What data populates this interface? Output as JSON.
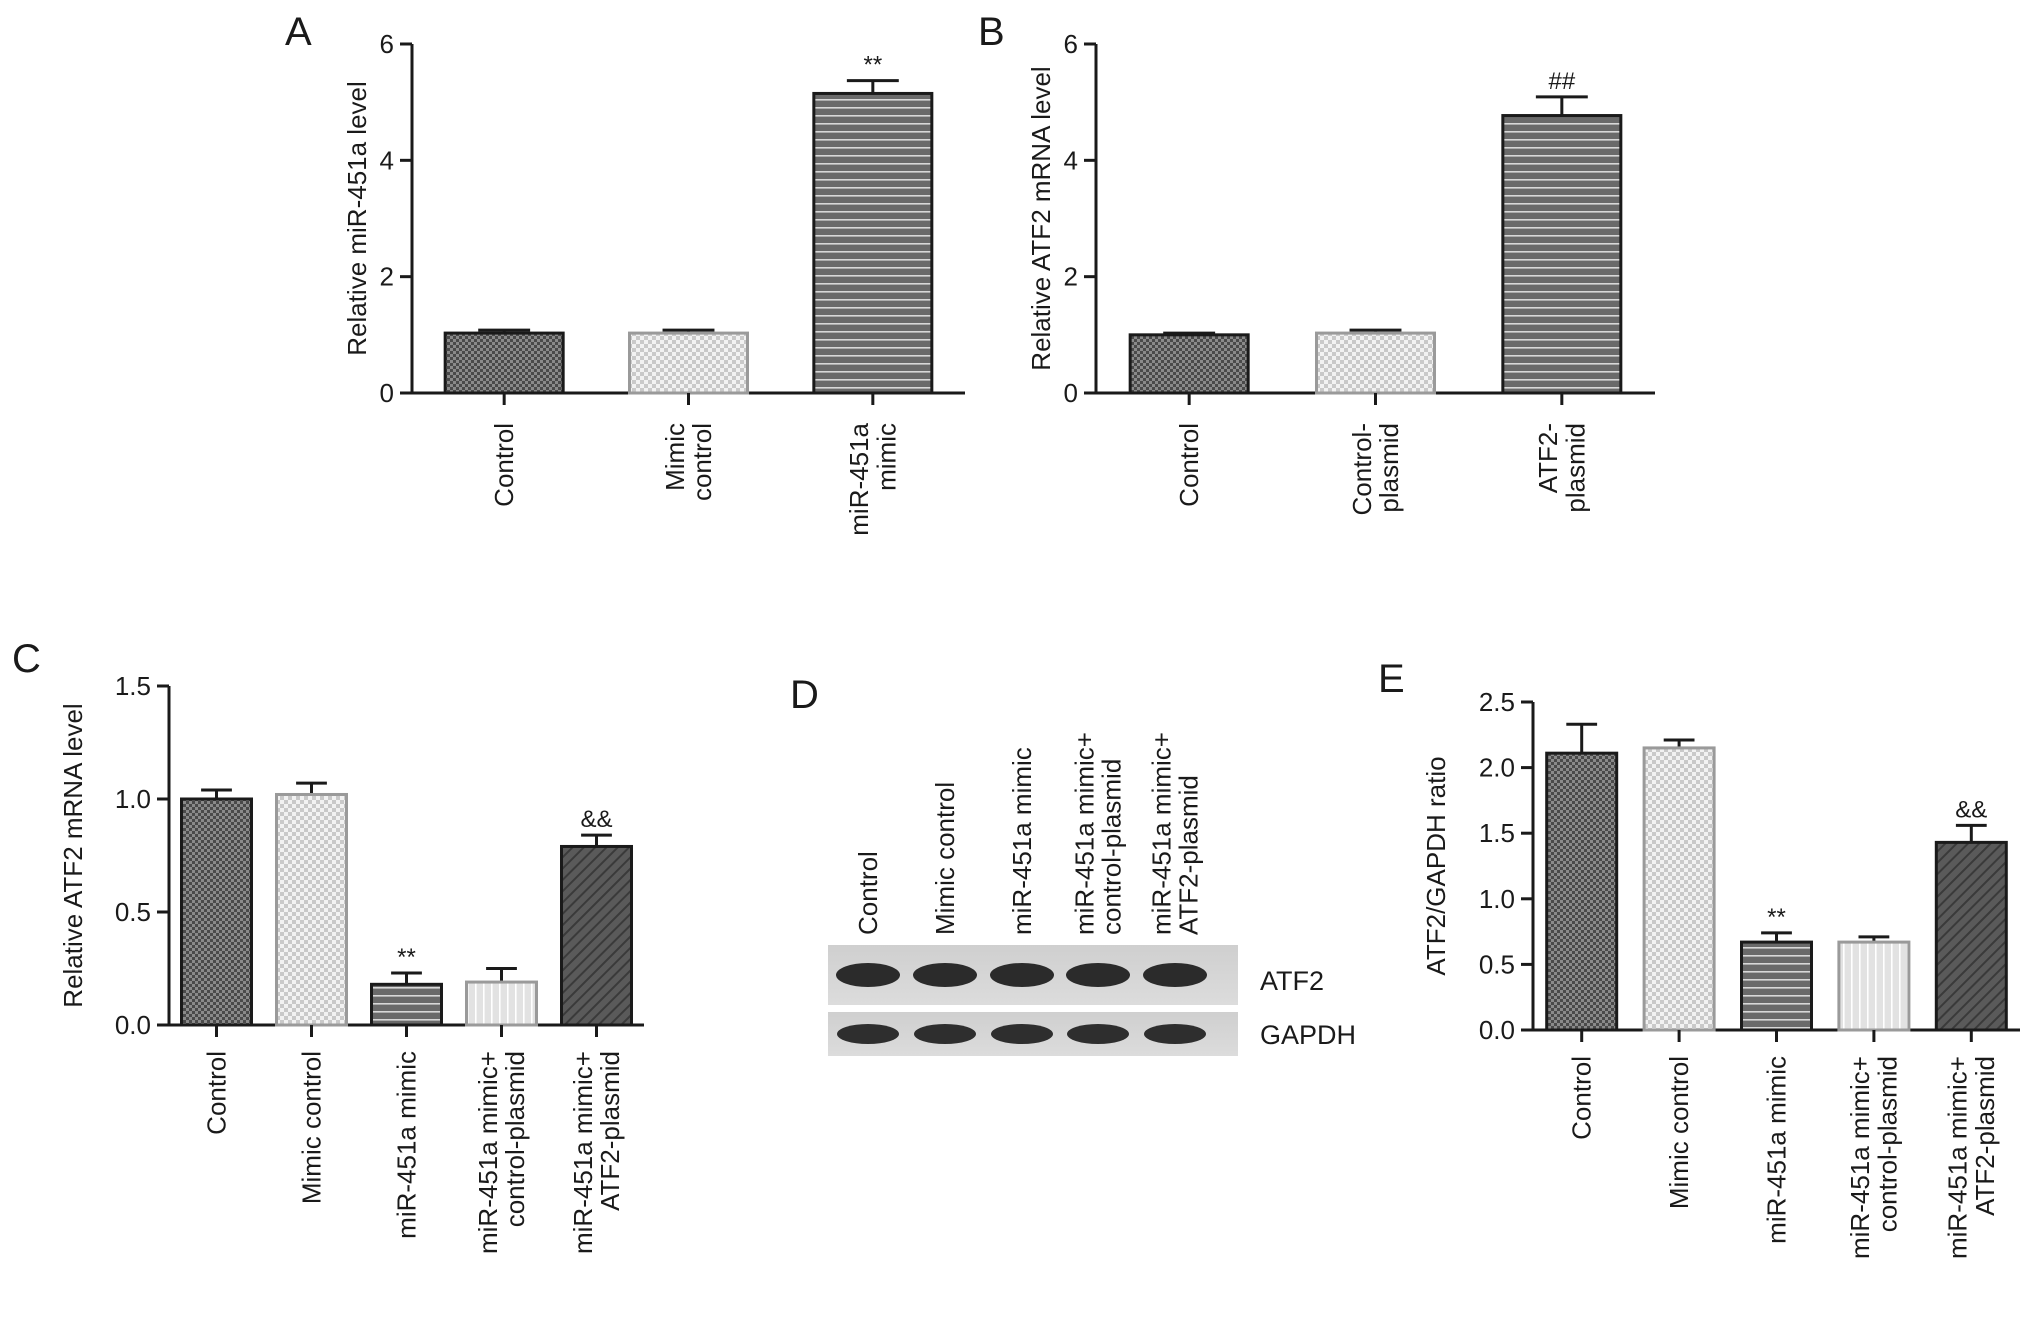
{
  "chart_data": [
    {
      "panel": "A",
      "type": "bar",
      "ylabel": "Relative miR-451a level",
      "ylim": [
        0,
        6
      ],
      "yticks": [
        "0",
        "2",
        "4",
        "6"
      ],
      "categories": [
        [
          "Control"
        ],
        [
          "Mimic",
          "control"
        ],
        [
          "miR-451a",
          "mimic"
        ]
      ],
      "values": [
        1.03,
        1.03,
        5.15
      ],
      "errors": [
        0.05,
        0.05,
        0.22
      ],
      "annotations": [
        "",
        "",
        "**"
      ],
      "patterns": [
        "checker-dark",
        "checker-light",
        "hstripe"
      ]
    },
    {
      "panel": "B",
      "type": "bar",
      "ylabel": "Relative ATF2 mRNA level",
      "ylim": [
        0,
        6
      ],
      "yticks": [
        "0",
        "2",
        "4",
        "6"
      ],
      "categories": [
        [
          "Control"
        ],
        [
          "Control-",
          "plasmid"
        ],
        [
          "ATF2-",
          "plasmid"
        ]
      ],
      "values": [
        1.0,
        1.03,
        4.77
      ],
      "errors": [
        0.03,
        0.05,
        0.32
      ],
      "annotations": [
        "",
        "",
        "##"
      ],
      "patterns": [
        "checker-dark",
        "checker-light",
        "hstripe"
      ]
    },
    {
      "panel": "C",
      "type": "bar",
      "ylabel": "Relative ATF2 mRNA level",
      "ylim": [
        0,
        1.5
      ],
      "yticks": [
        "0.0",
        "0.5",
        "1.0",
        "1.5"
      ],
      "categories": [
        [
          "Control"
        ],
        [
          "Mimic control"
        ],
        [
          "miR-451a mimic"
        ],
        [
          "miR-451a mimic+",
          "control-plasmid"
        ],
        [
          "miR-451a mimic+",
          "ATF2-plasmid"
        ]
      ],
      "values": [
        1.0,
        1.02,
        0.18,
        0.19,
        0.79
      ],
      "errors": [
        0.04,
        0.05,
        0.05,
        0.06,
        0.05
      ],
      "annotations": [
        "",
        "",
        "**",
        "",
        "&&"
      ],
      "patterns": [
        "checker-dark",
        "checker-light",
        "hstripe",
        "vstripe",
        "diag"
      ]
    },
    {
      "panel": "E",
      "type": "bar",
      "ylabel": "ATF2/GAPDH ratio",
      "ylim": [
        0,
        2.5
      ],
      "yticks": [
        "0.0",
        "0.5",
        "1.0",
        "1.5",
        "2.0",
        "2.5"
      ],
      "categories": [
        [
          "Control"
        ],
        [
          "Mimic control"
        ],
        [
          "miR-451a mimic"
        ],
        [
          "miR-451a mimic+",
          "control-plasmid"
        ],
        [
          "miR-451a mimic+",
          "ATF2-plasmid"
        ]
      ],
      "values": [
        2.11,
        2.15,
        0.67,
        0.67,
        1.43
      ],
      "errors": [
        0.22,
        0.06,
        0.07,
        0.04,
        0.13
      ],
      "annotations": [
        "",
        "",
        "**",
        "",
        "&&"
      ],
      "patterns": [
        "checker-dark",
        "checker-light",
        "hstripe",
        "vstripe",
        "diag"
      ]
    }
  ],
  "panel_letters": [
    "A",
    "B",
    "C",
    "D",
    "E"
  ],
  "blot": {
    "lanes": [
      [
        "Control"
      ],
      [
        "Mimic control"
      ],
      [
        "miR-451a mimic"
      ],
      [
        "miR-451a mimic+",
        "control-plasmid"
      ],
      [
        "miR-451a mimic+",
        "ATF2-plasmid"
      ]
    ],
    "rows": [
      "ATF2",
      "GAPDH"
    ]
  },
  "colors": {
    "dark_bar": "#5a5a5a",
    "light_bar": "#bdbdbd",
    "axis": "#1a1a1a"
  }
}
